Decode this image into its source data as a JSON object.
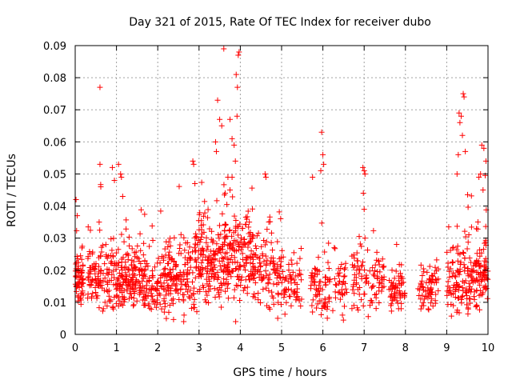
{
  "chart_data": {
    "type": "scatter",
    "title": "Day 321 of 2015, Rate Of TEC Index for receiver dubo",
    "xlabel": "GPS time / hours",
    "ylabel": "ROTI / TECUs",
    "xlim": [
      0,
      10
    ],
    "ylim": [
      0,
      0.09
    ],
    "xticks": [
      "0",
      "1",
      "2",
      "3",
      "4",
      "5",
      "6",
      "7",
      "8",
      "9",
      "10"
    ],
    "yticks": [
      "0",
      "0.01",
      "0.02",
      "0.03",
      "0.04",
      "0.05",
      "0.06",
      "0.07",
      "0.08",
      "0.09"
    ],
    "grid": true,
    "marker": "+",
    "colors": {
      "points": "#ff0000",
      "grid": "#a0a0a0",
      "axis": "#000000"
    },
    "series": [
      {
        "name": "ROTI",
        "density_profile": [
          {
            "x": [
              0.0,
              0.2
            ],
            "y_center": 0.016,
            "y_spread": 0.008,
            "count": 60
          },
          {
            "x": [
              0.3,
              0.9
            ],
            "y_center": 0.018,
            "y_spread": 0.009,
            "count": 110
          },
          {
            "x": [
              0.9,
              1.6
            ],
            "y_center": 0.017,
            "y_spread": 0.009,
            "count": 160
          },
          {
            "x": [
              1.6,
              2.2
            ],
            "y_center": 0.016,
            "y_spread": 0.009,
            "count": 110
          },
          {
            "x": [
              2.2,
              2.9
            ],
            "y_center": 0.018,
            "y_spread": 0.01,
            "count": 140
          },
          {
            "x": [
              2.9,
              3.6
            ],
            "y_center": 0.022,
            "y_spread": 0.011,
            "count": 170
          },
          {
            "x": [
              3.6,
              4.3
            ],
            "y_center": 0.024,
            "y_spread": 0.012,
            "count": 170
          },
          {
            "x": [
              4.3,
              5.0
            ],
            "y_center": 0.018,
            "y_spread": 0.009,
            "count": 120
          },
          {
            "x": [
              5.0,
              5.5
            ],
            "y_center": 0.015,
            "y_spread": 0.007,
            "count": 60
          },
          {
            "x": [
              5.7,
              6.6
            ],
            "y_center": 0.015,
            "y_spread": 0.008,
            "count": 110
          },
          {
            "x": [
              6.7,
              7.5
            ],
            "y_center": 0.017,
            "y_spread": 0.009,
            "count": 100
          },
          {
            "x": [
              7.6,
              8.0
            ],
            "y_center": 0.014,
            "y_spread": 0.006,
            "count": 60
          },
          {
            "x": [
              8.3,
              8.8
            ],
            "y_center": 0.014,
            "y_spread": 0.006,
            "count": 70
          },
          {
            "x": [
              9.0,
              9.5
            ],
            "y_center": 0.016,
            "y_spread": 0.008,
            "count": 90
          },
          {
            "x": [
              9.5,
              10.0
            ],
            "y_center": 0.018,
            "y_spread": 0.01,
            "count": 120
          }
        ],
        "notable_points": [
          {
            "x": 0.02,
            "y": 0.042
          },
          {
            "x": 0.05,
            "y": 0.037
          },
          {
            "x": 0.6,
            "y": 0.077
          },
          {
            "x": 0.6,
            "y": 0.053
          },
          {
            "x": 0.62,
            "y": 0.046
          },
          {
            "x": 0.58,
            "y": 0.035
          },
          {
            "x": 0.9,
            "y": 0.052
          },
          {
            "x": 0.95,
            "y": 0.048
          },
          {
            "x": 1.05,
            "y": 0.053
          },
          {
            "x": 1.1,
            "y": 0.05
          },
          {
            "x": 1.12,
            "y": 0.049
          },
          {
            "x": 1.15,
            "y": 0.043
          },
          {
            "x": 2.85,
            "y": 0.054
          },
          {
            "x": 2.87,
            "y": 0.053
          },
          {
            "x": 2.9,
            "y": 0.047
          },
          {
            "x": 3.45,
            "y": 0.073
          },
          {
            "x": 3.5,
            "y": 0.067
          },
          {
            "x": 3.55,
            "y": 0.065
          },
          {
            "x": 3.6,
            "y": 0.089
          },
          {
            "x": 3.75,
            "y": 0.067
          },
          {
            "x": 3.8,
            "y": 0.061
          },
          {
            "x": 3.85,
            "y": 0.059
          },
          {
            "x": 3.4,
            "y": 0.06
          },
          {
            "x": 3.42,
            "y": 0.057
          },
          {
            "x": 3.9,
            "y": 0.081
          },
          {
            "x": 3.93,
            "y": 0.077
          },
          {
            "x": 3.95,
            "y": 0.087
          },
          {
            "x": 3.97,
            "y": 0.088
          },
          {
            "x": 3.92,
            "y": 0.068
          },
          {
            "x": 3.88,
            "y": 0.054
          },
          {
            "x": 3.7,
            "y": 0.049
          },
          {
            "x": 3.75,
            "y": 0.045
          },
          {
            "x": 3.8,
            "y": 0.049
          },
          {
            "x": 4.6,
            "y": 0.05
          },
          {
            "x": 4.62,
            "y": 0.049
          },
          {
            "x": 5.97,
            "y": 0.063
          },
          {
            "x": 6.0,
            "y": 0.056
          },
          {
            "x": 6.02,
            "y": 0.053
          },
          {
            "x": 5.95,
            "y": 0.051
          },
          {
            "x": 5.75,
            "y": 0.049
          },
          {
            "x": 6.97,
            "y": 0.052
          },
          {
            "x": 7.0,
            "y": 0.051
          },
          {
            "x": 7.02,
            "y": 0.05
          },
          {
            "x": 6.98,
            "y": 0.044
          },
          {
            "x": 7.0,
            "y": 0.039
          },
          {
            "x": 9.3,
            "y": 0.069
          },
          {
            "x": 9.32,
            "y": 0.066
          },
          {
            "x": 9.35,
            "y": 0.068
          },
          {
            "x": 9.38,
            "y": 0.062
          },
          {
            "x": 9.4,
            "y": 0.075
          },
          {
            "x": 9.42,
            "y": 0.074
          },
          {
            "x": 9.45,
            "y": 0.057
          },
          {
            "x": 9.28,
            "y": 0.056
          },
          {
            "x": 9.25,
            "y": 0.05
          },
          {
            "x": 9.85,
            "y": 0.059
          },
          {
            "x": 9.9,
            "y": 0.058
          },
          {
            "x": 9.95,
            "y": 0.054
          },
          {
            "x": 9.82,
            "y": 0.05
          },
          {
            "x": 9.78,
            "y": 0.049
          },
          {
            "x": 9.88,
            "y": 0.045
          }
        ]
      }
    ]
  }
}
